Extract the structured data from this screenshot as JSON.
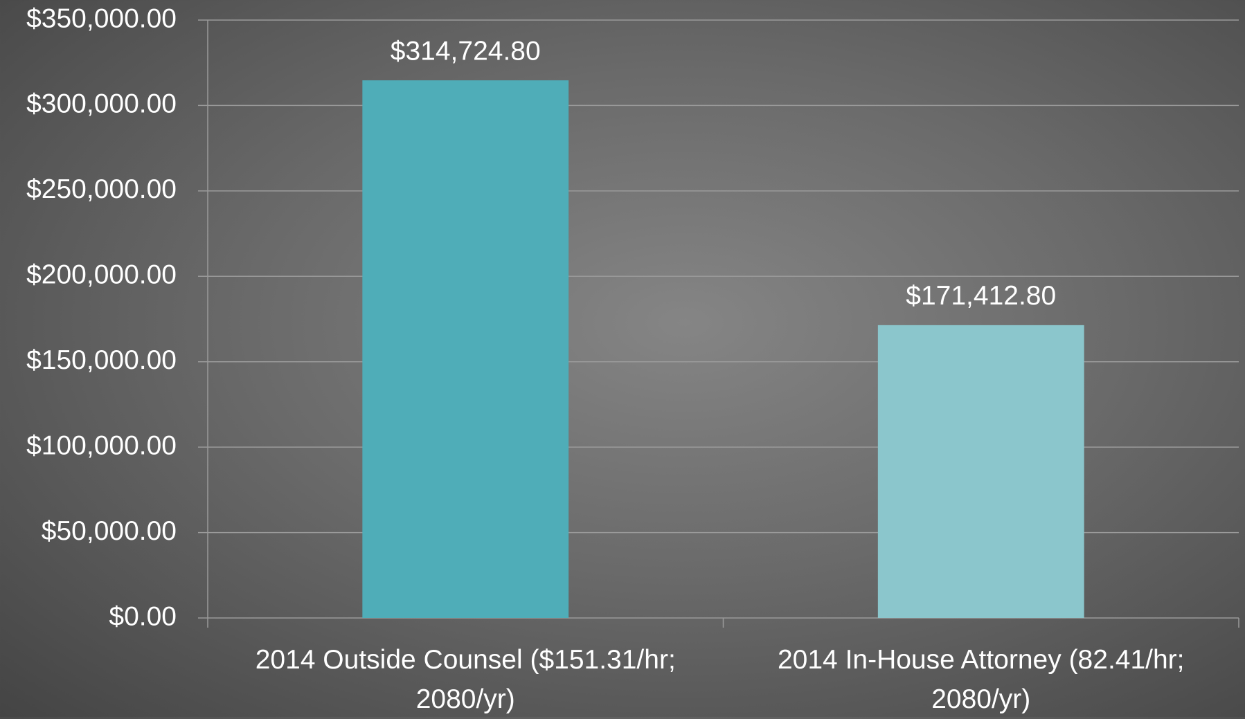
{
  "chart_data": {
    "type": "bar",
    "categories": [
      "2014 Outside Counsel ($151.31/hr; 2080/yr)",
      "2014 In-House Attorney (82.41/hr; 2080/yr)"
    ],
    "values": [
      314724.8,
      171412.8
    ],
    "value_labels": [
      "$314,724.80",
      "$171,412.80"
    ],
    "colors": [
      "#4fadb8",
      "#8bc6cc"
    ],
    "ylim": [
      0,
      350000
    ],
    "yticks": [
      {
        "value": 0,
        "label": "$0.00"
      },
      {
        "value": 50000,
        "label": "$50,000.00"
      },
      {
        "value": 100000,
        "label": "$100,000.00"
      },
      {
        "value": 150000,
        "label": "$150,000.00"
      },
      {
        "value": 200000,
        "label": "$200,000.00"
      },
      {
        "value": 250000,
        "label": "$250,000.00"
      },
      {
        "value": 300000,
        "label": "$300,000.00"
      },
      {
        "value": 350000,
        "label": "$350,000.00"
      }
    ],
    "grid": true
  }
}
